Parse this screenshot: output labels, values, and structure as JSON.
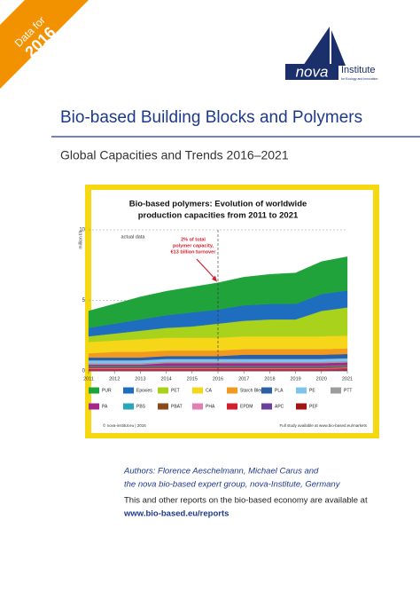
{
  "banner": {
    "line1": "Data for",
    "line2": "2016"
  },
  "logo": {
    "name": "nova",
    "suffix": "Institute",
    "tagline": "for Ecology and Innovation"
  },
  "title": "Bio-based Building Blocks and Polymers",
  "subtitle": "Global Capacities and Trends 2016–2021",
  "chart_data": {
    "type": "area",
    "title": [
      "Bio-based polymers: Evolution of worldwide",
      "production capacities from 2011 to 2021"
    ],
    "y_label": "million t/a",
    "period_label": "actual data",
    "annotation": [
      "2% of total",
      "polymer capacity,",
      "€13 billion turnover"
    ],
    "divider_x": 2016,
    "copyright": "© nova-institut.eu | 2016",
    "source": "Full study available at www.bio-based.eu/markets",
    "x": [
      2011,
      2012,
      2013,
      2014,
      2015,
      2016,
      2017,
      2018,
      2019,
      2020,
      2021
    ],
    "xlim": [
      2011,
      2021
    ],
    "xticks": [
      2011,
      2012,
      2013,
      2014,
      2015,
      2016,
      2017,
      2018,
      2019,
      2020,
      2021
    ],
    "ylim": [
      0,
      10
    ],
    "yticks": [
      0,
      5,
      10
    ],
    "grid": true,
    "series": [
      {
        "name": "PUR",
        "color": "#1fa33a",
        "values": [
          1.2,
          1.4,
          1.6,
          1.7,
          1.8,
          1.9,
          2.0,
          2.1,
          2.2,
          2.3,
          2.4
        ]
      },
      {
        "name": "Epoxies",
        "color": "#1f6dbf",
        "values": [
          0.6,
          0.7,
          0.8,
          0.9,
          1.0,
          1.0,
          1.1,
          1.1,
          1.1,
          1.2,
          1.2
        ]
      },
      {
        "name": "PET",
        "color": "#a8d21c",
        "values": [
          0.4,
          0.5,
          0.6,
          0.7,
          0.8,
          1.0,
          1.1,
          1.2,
          1.2,
          1.8,
          2.0
        ]
      },
      {
        "name": "CA",
        "color": "#f6d619",
        "values": [
          0.8,
          0.8,
          0.9,
          0.9,
          0.9,
          0.9,
          0.9,
          0.9,
          0.9,
          0.9,
          0.9
        ]
      },
      {
        "name": "Starch Blends",
        "color": "#f29a1f",
        "values": [
          0.3,
          0.4,
          0.4,
          0.4,
          0.4,
          0.4,
          0.4,
          0.4,
          0.4,
          0.4,
          0.4
        ]
      },
      {
        "name": "PLA",
        "color": "#2b5fa8",
        "values": [
          0.2,
          0.2,
          0.2,
          0.2,
          0.2,
          0.2,
          0.3,
          0.3,
          0.3,
          0.3,
          0.3
        ]
      },
      {
        "name": "PE",
        "color": "#7fc3ec",
        "values": [
          0.2,
          0.2,
          0.2,
          0.2,
          0.2,
          0.2,
          0.2,
          0.2,
          0.2,
          0.2,
          0.2
        ]
      },
      {
        "name": "PTT",
        "color": "#9d9d9d",
        "values": [
          0.1,
          0.1,
          0.1,
          0.1,
          0.1,
          0.1,
          0.1,
          0.1,
          0.1,
          0.1,
          0.1
        ]
      },
      {
        "name": "PA",
        "color": "#a3288c",
        "values": [
          0.1,
          0.1,
          0.1,
          0.2,
          0.2,
          0.2,
          0.2,
          0.2,
          0.2,
          0.2,
          0.2
        ]
      },
      {
        "name": "PBS",
        "color": "#27a7b7",
        "values": [
          0.05,
          0.05,
          0.05,
          0.05,
          0.05,
          0.05,
          0.05,
          0.05,
          0.05,
          0.05,
          0.05
        ]
      },
      {
        "name": "PBAT",
        "color": "#8a4a1c",
        "values": [
          0.1,
          0.1,
          0.1,
          0.1,
          0.1,
          0.1,
          0.1,
          0.1,
          0.1,
          0.1,
          0.1
        ]
      },
      {
        "name": "PHA",
        "color": "#e27db6",
        "values": [
          0.05,
          0.05,
          0.05,
          0.05,
          0.05,
          0.05,
          0.05,
          0.05,
          0.05,
          0.05,
          0.05
        ]
      },
      {
        "name": "EPDM",
        "color": "#d21f2e",
        "values": [
          0.1,
          0.1,
          0.1,
          0.1,
          0.1,
          0.1,
          0.1,
          0.1,
          0.1,
          0.1,
          0.1
        ]
      },
      {
        "name": "APC",
        "color": "#6b3fa0",
        "values": [
          0.05,
          0.05,
          0.05,
          0.05,
          0.05,
          0.05,
          0.05,
          0.05,
          0.05,
          0.05,
          0.05
        ]
      },
      {
        "name": "PEF",
        "color": "#a31515",
        "values": [
          0,
          0,
          0,
          0,
          0,
          0,
          0,
          0,
          0,
          0,
          0.05
        ]
      }
    ]
  },
  "authors": [
    "Authors: Florence Aeschelmann, Michael Carus and",
    "the nova bio-based expert group, nova-Institute, Germany"
  ],
  "note": "This and other reports on the bio-based economy are available at",
  "link": "www.bio-based.eu/reports"
}
